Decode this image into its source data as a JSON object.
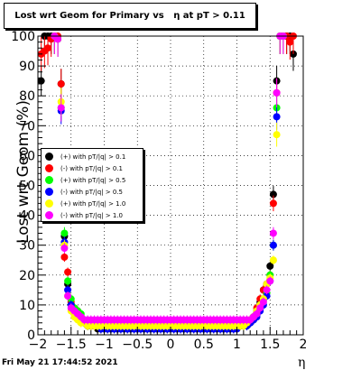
{
  "title": "Lost wrt Geom for Primary vs   η at pT > 0.11",
  "footer": "Fri May 21 17:44:52 2021",
  "chart_data": {
    "type": "scatter",
    "ylabel": "Lost wrt Geom (%)",
    "xlabel": "η",
    "xlim": [
      -2,
      2
    ],
    "ylim": [
      0,
      100
    ],
    "xticks": [
      "−2",
      "−1.5",
      "−1",
      "−0.5",
      "0",
      "0.5",
      "1",
      "1.5",
      "2"
    ],
    "yticks": [
      "0",
      "10",
      "20",
      "30",
      "40",
      "50",
      "60",
      "70",
      "80",
      "90",
      "100"
    ],
    "grid": true,
    "legend_position": "left-middle",
    "x": [
      -1.95,
      -1.9,
      -1.85,
      -1.8,
      -1.75,
      -1.7,
      -1.65,
      -1.6,
      -1.55,
      -1.5,
      -1.45,
      -1.4,
      -1.35,
      -1.3,
      -1.25,
      -1.2,
      -1.15,
      -1.1,
      -1.05,
      -1.0,
      -0.95,
      -0.9,
      -0.85,
      -0.8,
      -0.75,
      -0.7,
      -0.65,
      -0.6,
      -0.55,
      -0.5,
      -0.45,
      -0.4,
      -0.35,
      -0.3,
      -0.25,
      -0.2,
      -0.15,
      -0.1,
      -0.05,
      0.0,
      0.05,
      0.1,
      0.15,
      0.2,
      0.25,
      0.3,
      0.35,
      0.4,
      0.45,
      0.5,
      0.55,
      0.6,
      0.65,
      0.7,
      0.75,
      0.8,
      0.85,
      0.9,
      0.95,
      1.0,
      1.05,
      1.1,
      1.15,
      1.2,
      1.25,
      1.3,
      1.35,
      1.4,
      1.45,
      1.5,
      1.55,
      1.6,
      1.65,
      1.7,
      1.75,
      1.8,
      1.85,
      1.9,
      1.95
    ],
    "series": [
      {
        "name": "(+) with pT/|q| > 0.1",
        "color": "#000000",
        "values": [
          85,
          100,
          100,
          100,
          100,
          99,
          84,
          33,
          17,
          10,
          8,
          6,
          5,
          4,
          3,
          3,
          3,
          2,
          2,
          2,
          2,
          2,
          2,
          2,
          2,
          2,
          2,
          2,
          2,
          2,
          2,
          2,
          2,
          2,
          2,
          2,
          2,
          2,
          2,
          2,
          2,
          2,
          2,
          2,
          2,
          2,
          2,
          2,
          2,
          2,
          2,
          2,
          2,
          2,
          2,
          2,
          2,
          2,
          2,
          2,
          3,
          3,
          3,
          4,
          5,
          8,
          11,
          15,
          17,
          23,
          47,
          85,
          100,
          100,
          100,
          100,
          94,
          null,
          null
        ]
      },
      {
        "name": "(-) with pT/|q| > 0.1",
        "color": "#ff0000",
        "values": [
          94,
          95,
          96,
          99,
          100,
          100,
          84,
          26,
          21,
          11,
          9,
          8,
          6,
          5,
          4,
          3,
          3,
          3,
          3,
          3,
          3,
          3,
          3,
          3,
          3,
          3,
          3,
          3,
          3,
          3,
          3,
          3,
          3,
          3,
          3,
          3,
          3,
          3,
          3,
          3,
          3,
          3,
          3,
          3,
          3,
          3,
          3,
          3,
          3,
          3,
          3,
          3,
          3,
          3,
          3,
          3,
          3,
          3,
          3,
          3,
          4,
          4,
          4,
          5,
          6,
          9,
          12,
          15,
          17,
          20,
          44,
          81,
          100,
          100,
          100,
          98,
          100,
          null,
          null
        ]
      },
      {
        "name": "(+) with pT/|q| > 0.5",
        "color": "#00ff00",
        "values": [
          null,
          null,
          null,
          null,
          100,
          99,
          76,
          34,
          18,
          12,
          9,
          8,
          7,
          5,
          4,
          4,
          4,
          4,
          4,
          4,
          4,
          4,
          4,
          4,
          4,
          4,
          4,
          4,
          4,
          4,
          4,
          4,
          4,
          4,
          4,
          4,
          4,
          4,
          4,
          4,
          4,
          4,
          4,
          4,
          4,
          4,
          4,
          4,
          4,
          4,
          4,
          4,
          4,
          4,
          4,
          4,
          4,
          4,
          4,
          4,
          4,
          4,
          4,
          5,
          6,
          7,
          10,
          12,
          14,
          20,
          30,
          76,
          100,
          100,
          null,
          null,
          null,
          null,
          null
        ]
      },
      {
        "name": "(-) with pT/|q| > 0.5",
        "color": "#0000ff",
        "values": [
          null,
          null,
          null,
          null,
          100,
          99,
          75,
          31,
          15,
          10,
          8,
          6,
          5,
          4,
          3,
          3,
          3,
          3,
          2,
          2,
          2,
          2,
          2,
          2,
          2,
          2,
          2,
          2,
          2,
          2,
          2,
          2,
          2,
          2,
          2,
          2,
          2,
          2,
          2,
          2,
          2,
          2,
          2,
          2,
          2,
          2,
          2,
          2,
          2,
          2,
          2,
          2,
          2,
          2,
          2,
          2,
          2,
          2,
          2,
          2,
          3,
          3,
          3,
          4,
          5,
          6,
          8,
          10,
          13,
          18,
          30,
          73,
          100,
          100,
          null,
          null,
          null,
          null,
          null
        ]
      },
      {
        "name": "(+) with pT/|q| > 1.0",
        "color": "#ffff00",
        "values": [
          null,
          null,
          null,
          null,
          100,
          99,
          78,
          30,
          13,
          8,
          6,
          5,
          4,
          4,
          3,
          3,
          3,
          3,
          3,
          3,
          3,
          3,
          3,
          3,
          3,
          3,
          3,
          3,
          3,
          3,
          3,
          3,
          3,
          3,
          3,
          3,
          3,
          3,
          3,
          3,
          3,
          3,
          3,
          3,
          3,
          3,
          3,
          3,
          3,
          3,
          3,
          3,
          3,
          3,
          3,
          3,
          3,
          3,
          3,
          3,
          3,
          3,
          4,
          5,
          6,
          8,
          10,
          12,
          17,
          19,
          25,
          67,
          100,
          100,
          null,
          null,
          null,
          null,
          null
        ]
      },
      {
        "name": "(-) with pT/|q| > 1.0",
        "color": "#ff00ff",
        "values": [
          null,
          null,
          null,
          null,
          100,
          99,
          76,
          29,
          13,
          9,
          8,
          7,
          6,
          5,
          5,
          5,
          5,
          5,
          5,
          5,
          5,
          5,
          5,
          5,
          5,
          5,
          5,
          5,
          5,
          5,
          5,
          5,
          5,
          5,
          5,
          5,
          5,
          5,
          5,
          5,
          5,
          5,
          5,
          5,
          5,
          5,
          5,
          5,
          5,
          5,
          5,
          5,
          5,
          5,
          5,
          5,
          5,
          5,
          5,
          5,
          5,
          5,
          5,
          5,
          6,
          7,
          9,
          11,
          15,
          18,
          34,
          81,
          100,
          100,
          null,
          null,
          null,
          null,
          null
        ]
      }
    ]
  }
}
